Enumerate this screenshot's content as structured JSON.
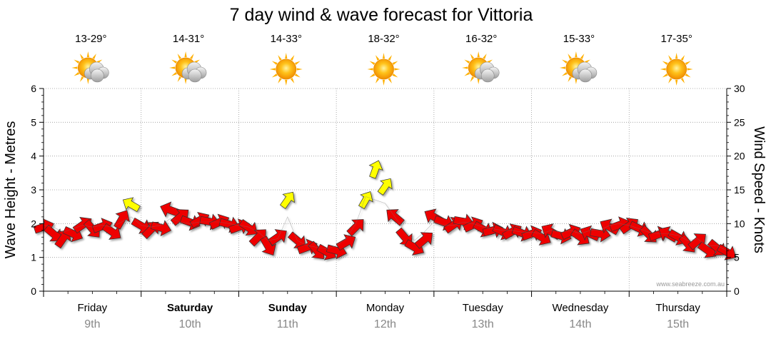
{
  "chart_data": {
    "type": "line",
    "title": "7 day wind & wave forecast for Vittoria",
    "ylabel_left": "Wave Height - Metres",
    "ylabel_right": "Wind Speed - Knots",
    "ylim_left": [
      0,
      6
    ],
    "ylim_right": [
      0,
      30
    ],
    "yticks_left": [
      "0",
      "1",
      "2",
      "3",
      "4",
      "5",
      "6"
    ],
    "yticks_right": [
      "0",
      "5",
      "10",
      "15",
      "20",
      "25",
      "30"
    ],
    "watermark": "www.seabreeze.com.au",
    "colors": {
      "wind_strong": "#ee0000",
      "wind_light": "#ffff00",
      "grid": "#999999",
      "axis": "#000000",
      "day_number": "#888888"
    },
    "days": [
      {
        "name": "Friday",
        "date": "9th",
        "temp": "13-29°",
        "icon": "partly-cloudy-icon",
        "bold": false
      },
      {
        "name": "Saturday",
        "date": "10th",
        "temp": "14-31°",
        "icon": "partly-cloudy-icon",
        "bold": true
      },
      {
        "name": "Sunday",
        "date": "11th",
        "temp": "14-33°",
        "icon": "sunny-icon",
        "bold": true
      },
      {
        "name": "Monday",
        "date": "12th",
        "temp": "18-32°",
        "icon": "sunny-icon",
        "bold": false
      },
      {
        "name": "Tuesday",
        "date": "13th",
        "temp": "16-32°",
        "icon": "partly-cloudy-icon",
        "bold": false
      },
      {
        "name": "Wednesday",
        "date": "14th",
        "temp": "15-33°",
        "icon": "partly-cloudy-icon",
        "bold": false
      },
      {
        "name": "Thursday",
        "date": "15th",
        "temp": "17-35°",
        "icon": "sunny-icon",
        "bold": false
      }
    ],
    "series": [
      {
        "name": "Wind",
        "x_days": [
          0.0,
          0.1,
          0.2,
          0.3,
          0.4,
          0.5,
          0.6,
          0.7,
          0.8,
          0.9,
          1.0,
          1.1,
          1.2,
          1.3,
          1.4,
          1.5,
          1.6,
          1.7,
          1.8,
          1.9,
          2.0,
          2.1,
          2.2,
          2.3,
          2.4,
          2.5,
          2.6,
          2.7,
          2.8,
          2.9,
          3.0,
          3.1,
          3.2,
          3.3,
          3.4,
          3.5,
          3.6,
          3.7,
          3.8,
          3.9,
          4.0,
          4.1,
          4.2,
          4.3,
          4.4,
          4.5,
          4.6,
          4.7,
          4.8,
          4.9,
          5.0,
          5.1,
          5.2,
          5.3,
          5.4,
          5.5,
          5.6,
          5.7,
          5.8,
          5.9,
          6.0,
          6.1,
          6.2,
          6.3,
          6.4,
          6.5,
          6.6,
          6.7,
          6.8,
          6.9,
          7.0
        ],
        "knots": [
          9.5,
          8.5,
          7.8,
          8.5,
          9.8,
          9.2,
          9.6,
          8.8,
          10.6,
          12.8,
          9.7,
          9.1,
          9.4,
          12.0,
          11.0,
          10.2,
          10.5,
          10.3,
          10.2,
          9.9,
          9.5,
          9.4,
          8.0,
          6.7,
          8.0,
          13.5,
          7.5,
          6.5,
          6.0,
          5.8,
          6.0,
          7.2,
          9.5,
          13.5,
          18.0,
          15.5,
          11.0,
          8.0,
          6.5,
          7.6,
          11.0,
          10.2,
          9.8,
          10.3,
          9.8,
          9.2,
          9.0,
          8.8,
          8.8,
          8.6,
          8.5,
          8.0,
          8.8,
          8.2,
          8.7,
          8.0,
          8.5,
          8.5,
          9.5,
          9.8,
          9.7,
          9.3,
          8.4,
          8.4,
          8.4,
          8.0,
          7.0,
          7.4,
          6.1,
          6.4,
          5.8
        ]
      },
      {
        "name": "Wave",
        "x_days": [
          0.0,
          0.1,
          0.2,
          0.3,
          0.4,
          0.5,
          0.6,
          0.7,
          0.8,
          0.9,
          1.0,
          1.1,
          1.2,
          1.3,
          1.4,
          1.5,
          1.6,
          1.7,
          1.8,
          1.9,
          2.0,
          2.1,
          2.2,
          2.3,
          2.4,
          2.5,
          2.6,
          2.7,
          2.8,
          2.9,
          3.0,
          3.1,
          3.2,
          3.3,
          3.4,
          3.5,
          3.6,
          3.7,
          3.8,
          3.9,
          4.0,
          4.1,
          4.2,
          4.3,
          4.4,
          4.5,
          4.6,
          4.7,
          4.8,
          4.9,
          5.0,
          5.1,
          5.2,
          5.3,
          5.4,
          5.5,
          5.6,
          5.7,
          5.8,
          5.9,
          6.0,
          6.1,
          6.2,
          6.3,
          6.4,
          6.5,
          6.6,
          6.7,
          6.8,
          6.9,
          7.0
        ],
        "metres": [
          1.95,
          1.9,
          1.75,
          1.85,
          1.95,
          1.9,
          1.95,
          1.9,
          2.05,
          2.2,
          1.95,
          1.9,
          1.95,
          2.15,
          2.05,
          2.0,
          2.05,
          2.05,
          2.05,
          2.0,
          1.95,
          1.9,
          1.75,
          1.5,
          1.55,
          2.2,
          1.5,
          1.35,
          1.3,
          1.25,
          1.35,
          1.55,
          2.0,
          2.8,
          2.7,
          2.6,
          2.2,
          1.8,
          1.5,
          1.75,
          2.05,
          1.95,
          1.95,
          2.05,
          2.0,
          1.9,
          1.85,
          1.8,
          1.8,
          1.75,
          1.75,
          1.7,
          1.8,
          1.75,
          1.8,
          1.7,
          1.8,
          1.8,
          1.95,
          2.0,
          1.95,
          1.85,
          1.75,
          1.7,
          1.7,
          1.65,
          1.5,
          1.55,
          1.35,
          1.35,
          1.2
        ]
      }
    ]
  }
}
